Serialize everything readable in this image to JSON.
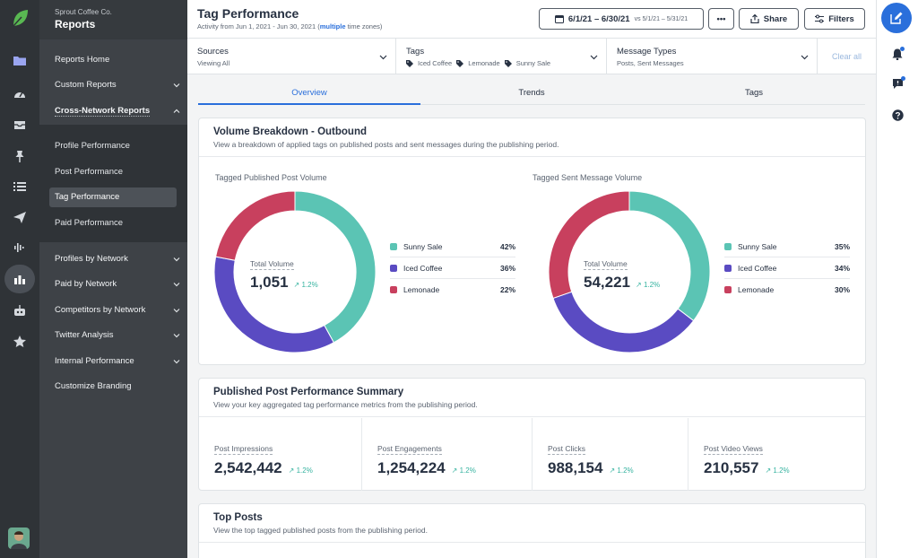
{
  "app": {
    "org": "Sprout Coffee Co.",
    "section": "Reports"
  },
  "rail_icons": [
    "folder-icon",
    "gauge-icon",
    "inbox-icon",
    "pin-icon",
    "list-icon",
    "send-icon",
    "waveform-icon",
    "bar-chart-icon",
    "bot-icon",
    "star-icon"
  ],
  "nav": {
    "items": [
      {
        "label": "Reports Home",
        "chevron": ""
      },
      {
        "label": "Custom Reports",
        "chevron": "down"
      },
      {
        "label": "Cross-Network Reports",
        "chevron": "up"
      }
    ],
    "sub_items": [
      {
        "label": "Profile Performance",
        "active": false
      },
      {
        "label": "Post Performance",
        "active": false
      },
      {
        "label": "Tag Performance",
        "active": true
      },
      {
        "label": "Paid Performance",
        "active": false
      }
    ],
    "lower_items": [
      {
        "label": "Profiles by Network",
        "chevron": "down"
      },
      {
        "label": "Paid by Network",
        "chevron": "down"
      },
      {
        "label": "Competitors by Network",
        "chevron": "down"
      },
      {
        "label": "Twitter Analysis",
        "chevron": "down"
      },
      {
        "label": "Internal Performance",
        "chevron": "down"
      },
      {
        "label": "Customize Branding",
        "chevron": ""
      }
    ]
  },
  "header": {
    "title": "Tag Performance",
    "subtitle_prefix": "Activity from Jun 1, 2021 - Jun 30, 2021 (",
    "subtitle_link": "multiple",
    "subtitle_suffix": " time zones)",
    "date_range": "6/1/21 – 6/30/21",
    "compare_range": "vs 5/1/21 – 5/31/21",
    "more_label": "•••",
    "share_label": "Share",
    "filters_label": "Filters"
  },
  "filter_bar": {
    "sources": {
      "label": "Sources",
      "value": "Viewing All"
    },
    "tags": {
      "label": "Tags",
      "values": [
        "Iced Coffee",
        "Lemonade",
        "Sunny Sale"
      ]
    },
    "message_types": {
      "label": "Message Types",
      "value": "Posts, Sent Messages"
    },
    "clear_label": "Clear all"
  },
  "tabs": [
    {
      "label": "Overview",
      "active": true
    },
    {
      "label": "Trends",
      "active": false
    },
    {
      "label": "Tags",
      "active": false
    }
  ],
  "volume_card": {
    "title": "Volume Breakdown - Outbound",
    "subtitle": "View a breakdown of applied tags on published posts and sent messages during the publishing period."
  },
  "post_summary": {
    "title": "Published Post Performance Summary",
    "subtitle": "View your key aggregated tag performance metrics from the publishing period.",
    "metrics": [
      {
        "label": "Post Impressions",
        "value": "2,542,442",
        "trend": "1.2%"
      },
      {
        "label": "Post Engagements",
        "value": "1,254,224",
        "trend": "1.2%"
      },
      {
        "label": "Post Clicks",
        "value": "988,154",
        "trend": "1.2%"
      },
      {
        "label": "Post Video Views",
        "value": "210,557",
        "trend": "1.2%"
      }
    ]
  },
  "top_posts": {
    "title": "Top Posts",
    "subtitle": "View the top tagged published posts from the publishing period."
  },
  "colors": {
    "sunny_sale": "#5bc4b4",
    "iced_coffee": "#5a4bc2",
    "lemonade": "#c8405e",
    "accent": "#2a6fdb"
  },
  "chart_data": [
    {
      "type": "pie",
      "title": "Tagged Published Post Volume",
      "center_label": "Total Volume",
      "center_value": "1,051",
      "center_trend": "1.2%",
      "categories": [
        "Sunny Sale",
        "Iced Coffee",
        "Lemonade"
      ],
      "values": [
        42,
        36,
        22
      ],
      "labels": [
        "42%",
        "36%",
        "22%"
      ]
    },
    {
      "type": "pie",
      "title": "Tagged Sent Message Volume",
      "center_label": "Total Volume",
      "center_value": "54,221",
      "center_trend": "1.2%",
      "categories": [
        "Sunny Sale",
        "Iced Coffee",
        "Lemonade"
      ],
      "values": [
        35,
        34,
        30
      ],
      "labels": [
        "35%",
        "34%",
        "30%"
      ]
    }
  ]
}
